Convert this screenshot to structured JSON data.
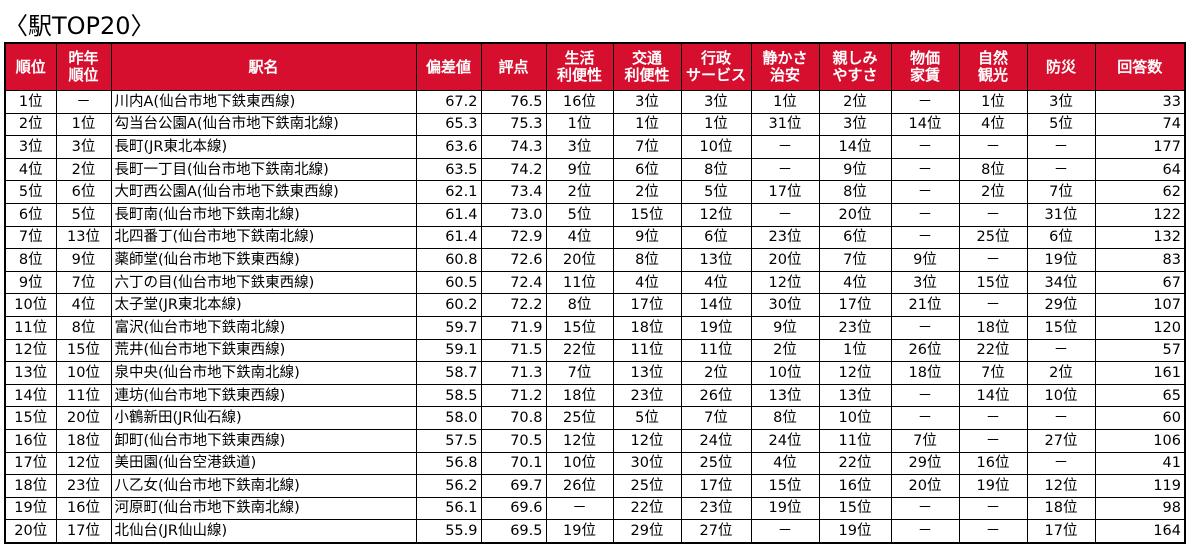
{
  "title": "〈駅TOP20〉",
  "headers": [
    "順位",
    "昨年\n順位",
    "駅名",
    "偏差値",
    "評点",
    "生活\n利便性",
    "交通\n利便性",
    "行政\nサービス",
    "静かさ\n治安",
    "親しみ\nやすさ",
    "物価\n家賃",
    "自然\n観光",
    "防災",
    "回答数"
  ],
  "header_color": "#d50f2d",
  "rows": [
    [
      "1位",
      "－",
      "川内A(仙台市地下鉄東西線)",
      "67.2",
      "76.5",
      "16位",
      "3位",
      "3位",
      "1位",
      "2位",
      "－",
      "1位",
      "3位",
      "33"
    ],
    [
      "2位",
      "1位",
      "勾当台公園A(仙台市地下鉄南北線)",
      "65.3",
      "75.3",
      "1位",
      "1位",
      "1位",
      "31位",
      "3位",
      "14位",
      "4位",
      "5位",
      "74"
    ],
    [
      "3位",
      "3位",
      "長町(JR東北本線)",
      "63.6",
      "74.3",
      "3位",
      "7位",
      "10位",
      "－",
      "14位",
      "－",
      "－",
      "－",
      "177"
    ],
    [
      "4位",
      "2位",
      "長町一丁目(仙台市地下鉄南北線)",
      "63.5",
      "74.2",
      "9位",
      "6位",
      "8位",
      "－",
      "9位",
      "－",
      "8位",
      "－",
      "64"
    ],
    [
      "5位",
      "6位",
      "大町西公園A(仙台市地下鉄東西線)",
      "62.1",
      "73.4",
      "2位",
      "2位",
      "5位",
      "17位",
      "8位",
      "－",
      "2位",
      "7位",
      "62"
    ],
    [
      "6位",
      "5位",
      "長町南(仙台市地下鉄南北線)",
      "61.4",
      "73.0",
      "5位",
      "15位",
      "12位",
      "－",
      "20位",
      "－",
      "－",
      "31位",
      "122"
    ],
    [
      "7位",
      "13位",
      "北四番丁(仙台市地下鉄南北線)",
      "61.4",
      "72.9",
      "4位",
      "9位",
      "6位",
      "23位",
      "6位",
      "－",
      "25位",
      "6位",
      "132"
    ],
    [
      "8位",
      "9位",
      "薬師堂(仙台市地下鉄東西線)",
      "60.8",
      "72.6",
      "20位",
      "8位",
      "13位",
      "20位",
      "7位",
      "9位",
      "－",
      "19位",
      "83"
    ],
    [
      "9位",
      "7位",
      "六丁の目(仙台市地下鉄東西線)",
      "60.5",
      "72.4",
      "11位",
      "4位",
      "4位",
      "12位",
      "4位",
      "3位",
      "15位",
      "34位",
      "67"
    ],
    [
      "10位",
      "4位",
      "太子堂(JR東北本線)",
      "60.2",
      "72.2",
      "8位",
      "17位",
      "14位",
      "30位",
      "17位",
      "21位",
      "－",
      "29位",
      "107"
    ],
    [
      "11位",
      "8位",
      "富沢(仙台市地下鉄南北線)",
      "59.7",
      "71.9",
      "15位",
      "18位",
      "19位",
      "9位",
      "23位",
      "－",
      "18位",
      "15位",
      "120"
    ],
    [
      "12位",
      "15位",
      "荒井(仙台市地下鉄東西線)",
      "59.1",
      "71.5",
      "22位",
      "11位",
      "11位",
      "2位",
      "1位",
      "26位",
      "22位",
      "－",
      "57"
    ],
    [
      "13位",
      "10位",
      "泉中央(仙台市地下鉄南北線)",
      "58.7",
      "71.3",
      "7位",
      "13位",
      "2位",
      "10位",
      "12位",
      "18位",
      "7位",
      "2位",
      "161"
    ],
    [
      "14位",
      "11位",
      "連坊(仙台市地下鉄東西線)",
      "58.5",
      "71.2",
      "18位",
      "23位",
      "26位",
      "13位",
      "13位",
      "－",
      "14位",
      "10位",
      "65"
    ],
    [
      "15位",
      "20位",
      "小鶴新田(JR仙石線)",
      "58.0",
      "70.8",
      "25位",
      "5位",
      "7位",
      "8位",
      "10位",
      "－",
      "－",
      "－",
      "60"
    ],
    [
      "16位",
      "18位",
      "卸町(仙台市地下鉄東西線)",
      "57.5",
      "70.5",
      "12位",
      "12位",
      "24位",
      "24位",
      "11位",
      "7位",
      "－",
      "27位",
      "106"
    ],
    [
      "17位",
      "12位",
      "美田園(仙台空港鉄道)",
      "56.8",
      "70.1",
      "10位",
      "30位",
      "25位",
      "4位",
      "22位",
      "29位",
      "16位",
      "－",
      "41"
    ],
    [
      "18位",
      "23位",
      "八乙女(仙台市地下鉄南北線)",
      "56.2",
      "69.7",
      "26位",
      "25位",
      "17位",
      "15位",
      "16位",
      "20位",
      "19位",
      "12位",
      "119"
    ],
    [
      "19位",
      "16位",
      "河原町(仙台市地下鉄南北線)",
      "56.1",
      "69.6",
      "－",
      "22位",
      "23位",
      "19位",
      "15位",
      "－",
      "－",
      "18位",
      "98"
    ],
    [
      "20位",
      "17位",
      "北仙台(JR仙山線)",
      "55.9",
      "69.5",
      "19位",
      "29位",
      "27位",
      "－",
      "19位",
      "－",
      "－",
      "17位",
      "164"
    ]
  ]
}
